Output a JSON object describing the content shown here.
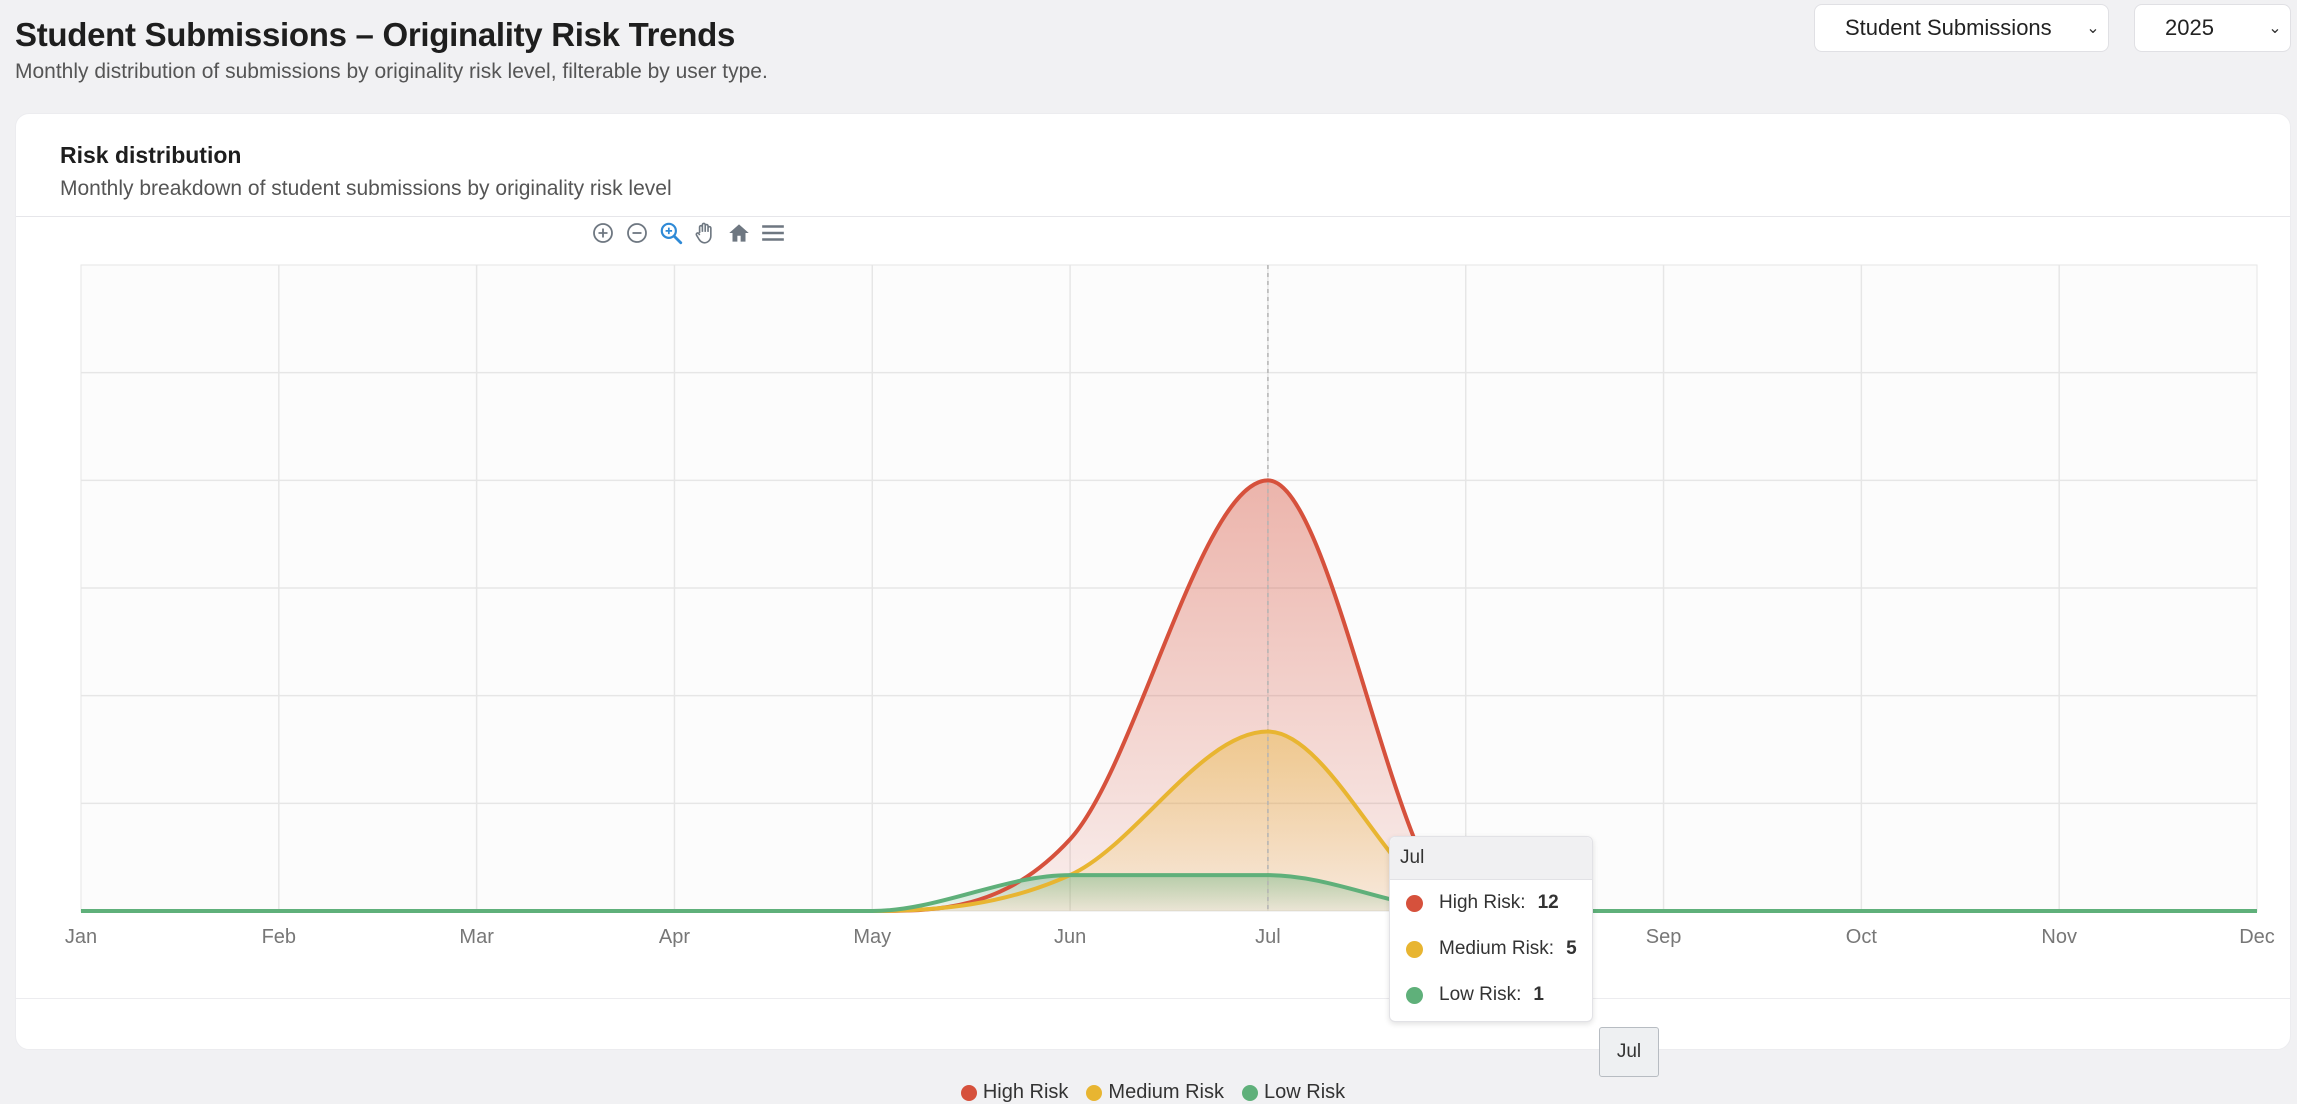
{
  "header": {
    "title": "Student Submissions – Originality Risk Trends",
    "subtitle": "Monthly distribution of submissions by originality risk level, filterable by user type."
  },
  "filters": {
    "user_type": "Student Submissions",
    "year": "2025"
  },
  "card": {
    "title": "Risk distribution",
    "subtitle": "Monthly breakdown of student submissions by originality risk level"
  },
  "toolbar": [
    "zoom-in-icon",
    "zoom-out-icon",
    "selection-zoom-icon",
    "pan-hand-icon",
    "home-reset-icon",
    "menu-icon"
  ],
  "colors": {
    "high": "#d6513c",
    "medium": "#e8b531",
    "low": "#5fb07a"
  },
  "chart_data": {
    "type": "area",
    "categories": [
      "Jan",
      "Feb",
      "Mar",
      "Apr",
      "May",
      "Jun",
      "Jul",
      "Aug",
      "Sep",
      "Oct",
      "Nov",
      "Dec"
    ],
    "series": [
      {
        "name": "High Risk",
        "values": [
          0,
          0,
          0,
          0,
          0,
          2,
          12,
          0,
          0,
          0,
          0,
          0
        ]
      },
      {
        "name": "Medium Risk",
        "values": [
          0,
          0,
          0,
          0,
          0,
          1,
          5,
          0,
          0,
          0,
          0,
          0
        ]
      },
      {
        "name": "Low Risk",
        "values": [
          0,
          0,
          0,
          0,
          0,
          1,
          1,
          0,
          0,
          0,
          0,
          0
        ]
      }
    ],
    "ylim": [
      0,
      18
    ],
    "grid": true,
    "legend_position": "bottom"
  },
  "tooltip": {
    "title": "Jul",
    "rows": [
      {
        "label": "High Risk:",
        "value": "12"
      },
      {
        "label": "Medium Risk:",
        "value": "5"
      },
      {
        "label": "Low Risk:",
        "value": "1"
      }
    ]
  },
  "crosshair_label": "Jul"
}
